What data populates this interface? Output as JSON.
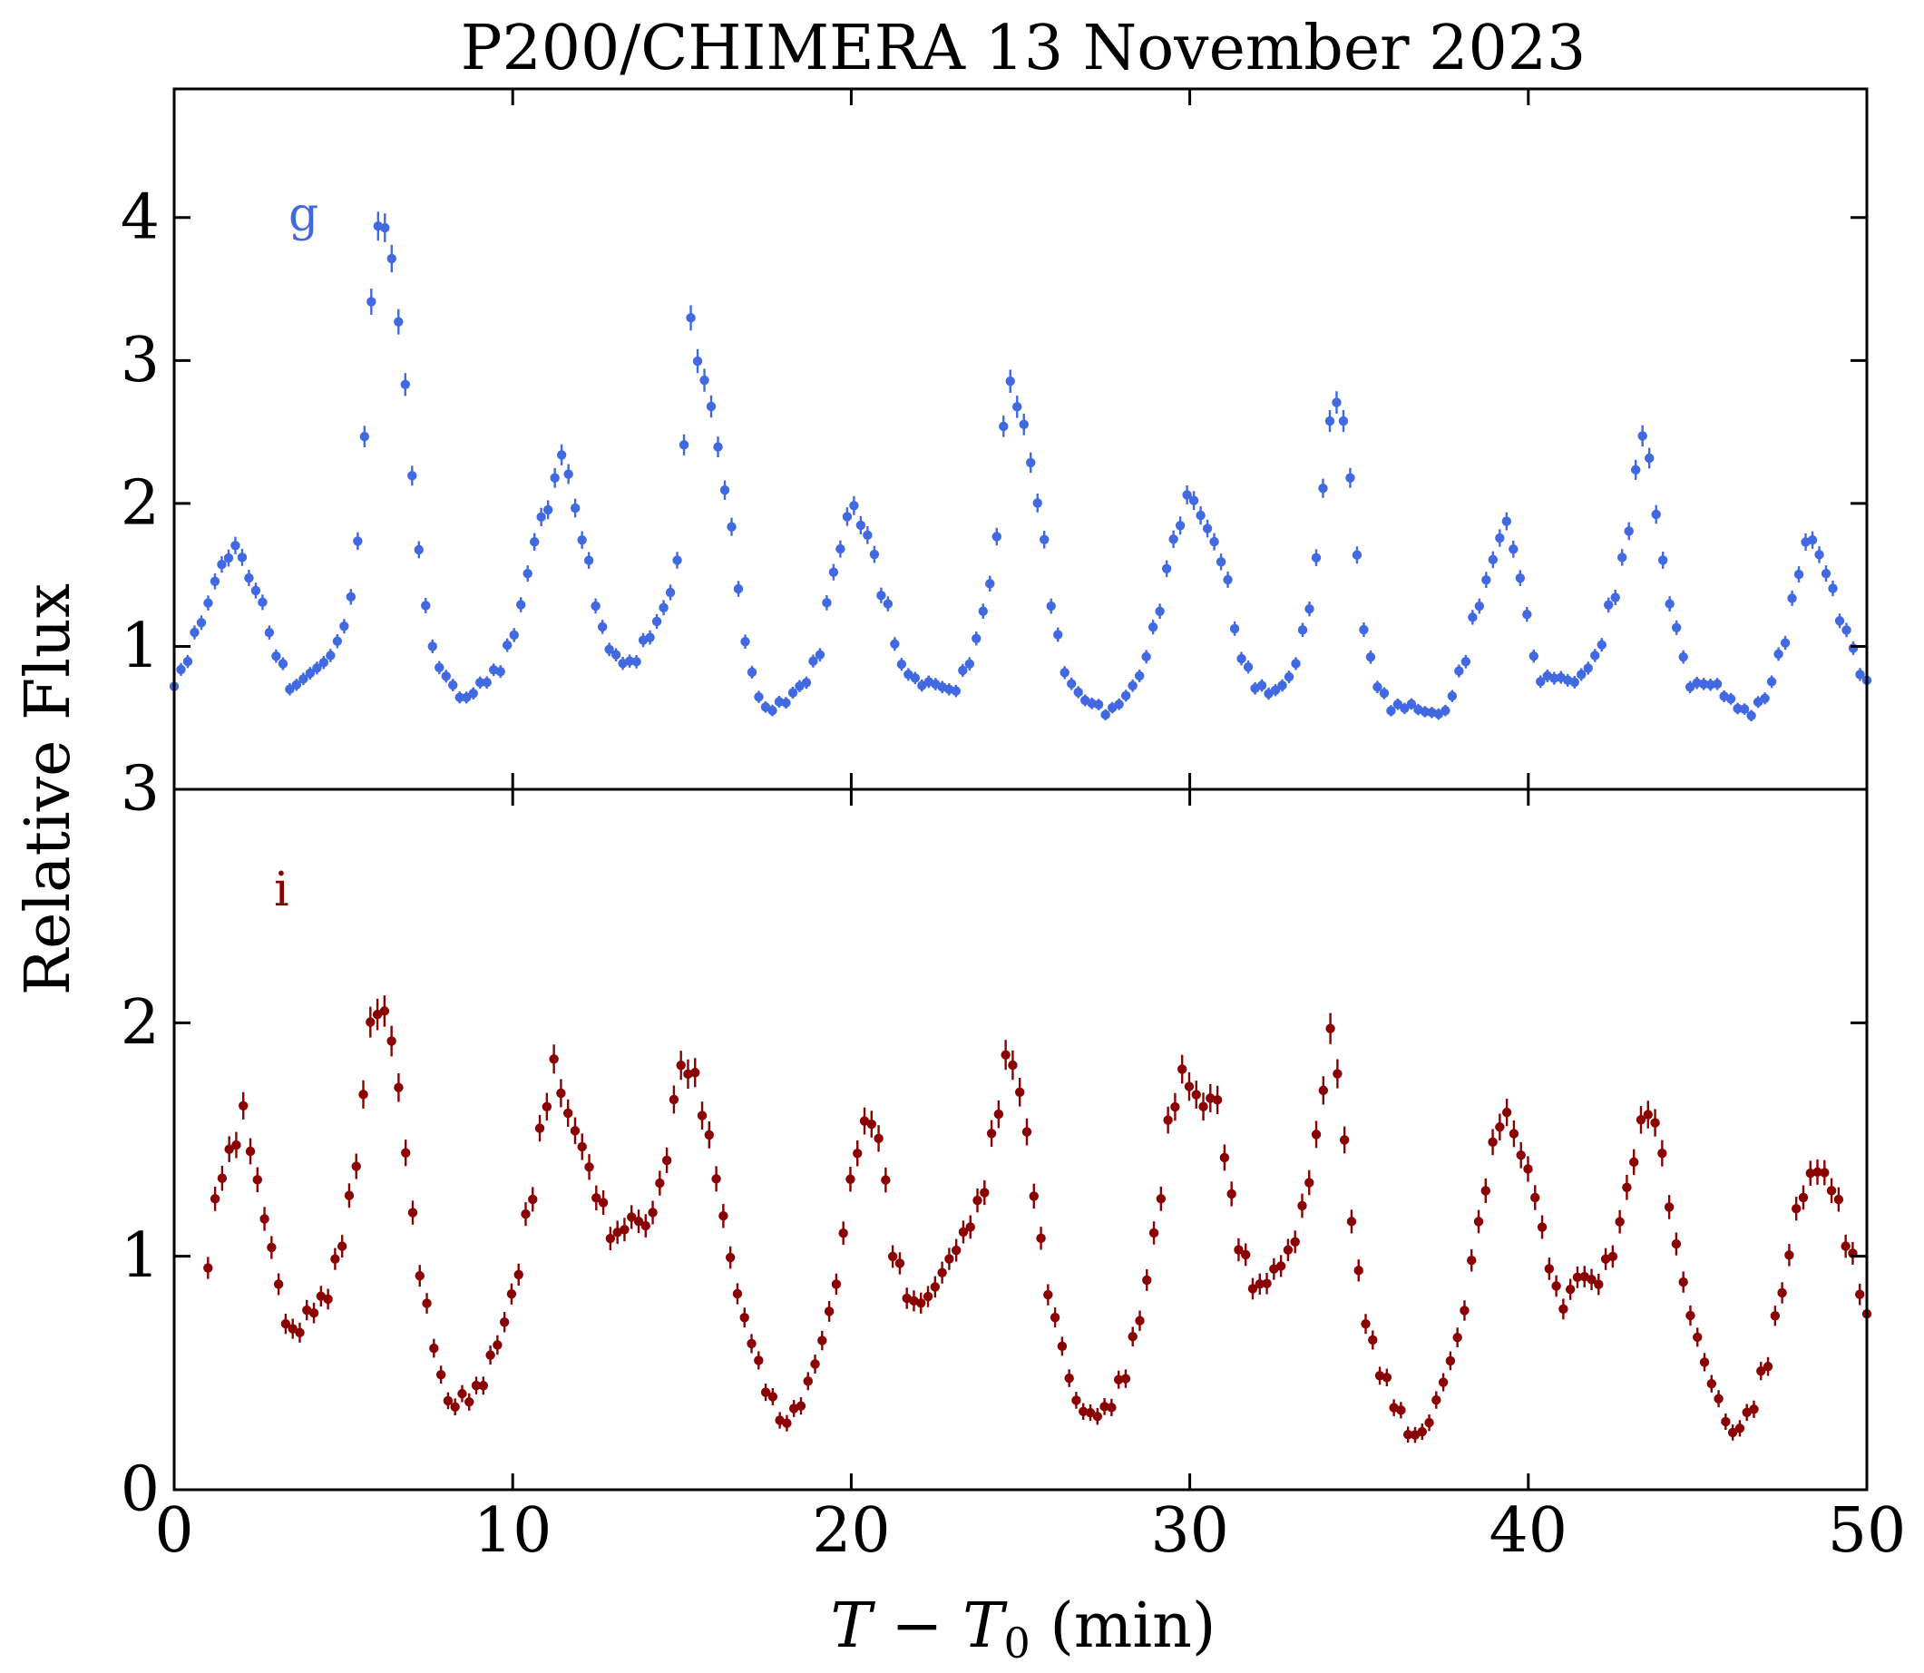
{
  "figure": {
    "title": "P200/CHIMERA 13 November 2023",
    "ylabel": "Relative Flux",
    "xlabel_main": "T − T",
    "xlabel_sub": "0",
    "xlabel_unit": " (min)"
  },
  "chart_data": [
    {
      "type": "scatter",
      "name": "g-band",
      "label": "g",
      "color": "#4169e1",
      "xlim": [
        0,
        50
      ],
      "ylim": [
        0.0,
        4.9
      ],
      "yticks": [
        1,
        2,
        3,
        4
      ],
      "ytick_labels": [
        "1",
        "2",
        "3",
        "4"
      ],
      "xticks": [
        0,
        10,
        20,
        30,
        40,
        50
      ],
      "anchors": [
        [
          0.0,
          0.72
        ],
        [
          0.3,
          0.85
        ],
        [
          0.8,
          1.15
        ],
        [
          1.4,
          1.55
        ],
        [
          1.8,
          1.72
        ],
        [
          2.5,
          1.4
        ],
        [
          3.0,
          0.95
        ],
        [
          3.5,
          0.67
        ],
        [
          4.0,
          0.78
        ],
        [
          4.5,
          0.9
        ],
        [
          5.0,
          1.15
        ],
        [
          5.3,
          1.45
        ],
        [
          5.5,
          1.9
        ],
        [
          5.7,
          2.8
        ],
        [
          5.9,
          3.7
        ],
        [
          6.1,
          4.05
        ],
        [
          6.3,
          3.85
        ],
        [
          6.5,
          3.6
        ],
        [
          6.7,
          3.1
        ],
        [
          6.9,
          2.65
        ],
        [
          7.1,
          2.0
        ],
        [
          7.3,
          1.5
        ],
        [
          7.6,
          1.0
        ],
        [
          8.0,
          0.82
        ],
        [
          8.6,
          0.65
        ],
        [
          9.0,
          0.72
        ],
        [
          9.6,
          0.8
        ],
        [
          10.0,
          1.05
        ],
        [
          10.3,
          1.3
        ],
        [
          10.6,
          1.75
        ],
        [
          11.0,
          2.0
        ],
        [
          11.5,
          2.4
        ],
        [
          11.8,
          2.0
        ],
        [
          12.2,
          1.6
        ],
        [
          12.6,
          1.1
        ],
        [
          13.0,
          0.9
        ],
        [
          13.5,
          0.88
        ],
        [
          14.0,
          1.1
        ],
        [
          14.5,
          1.3
        ],
        [
          14.9,
          1.6
        ],
        [
          15.1,
          2.5
        ],
        [
          15.3,
          3.33
        ],
        [
          15.5,
          2.95
        ],
        [
          15.8,
          2.7
        ],
        [
          16.1,
          2.35
        ],
        [
          16.4,
          1.9
        ],
        [
          16.7,
          1.4
        ],
        [
          17.0,
          0.85
        ],
        [
          17.5,
          0.58
        ],
        [
          18.0,
          0.6
        ],
        [
          18.6,
          0.7
        ],
        [
          19.0,
          0.9
        ],
        [
          19.5,
          1.55
        ],
        [
          20.0,
          2.02
        ],
        [
          20.5,
          1.8
        ],
        [
          21.0,
          1.3
        ],
        [
          21.5,
          0.82
        ],
        [
          22.0,
          0.72
        ],
        [
          22.5,
          0.75
        ],
        [
          23.0,
          0.72
        ],
        [
          23.5,
          0.92
        ],
        [
          24.0,
          1.3
        ],
        [
          24.3,
          1.75
        ],
        [
          24.5,
          2.5
        ],
        [
          24.7,
          2.82
        ],
        [
          25.0,
          2.6
        ],
        [
          25.3,
          2.3
        ],
        [
          25.6,
          1.9
        ],
        [
          26.0,
          1.2
        ],
        [
          26.4,
          0.78
        ],
        [
          27.0,
          0.6
        ],
        [
          27.6,
          0.5
        ],
        [
          28.0,
          0.6
        ],
        [
          28.5,
          0.8
        ],
        [
          29.0,
          1.2
        ],
        [
          29.5,
          1.75
        ],
        [
          30.0,
          2.05
        ],
        [
          30.5,
          1.8
        ],
        [
          31.0,
          1.55
        ],
        [
          31.5,
          0.95
        ],
        [
          32.0,
          0.75
        ],
        [
          32.5,
          0.7
        ],
        [
          33.0,
          0.78
        ],
        [
          33.5,
          1.2
        ],
        [
          34.0,
          2.1
        ],
        [
          34.2,
          2.73
        ],
        [
          34.6,
          2.6
        ],
        [
          34.9,
          1.7
        ],
        [
          35.2,
          1.1
        ],
        [
          35.5,
          0.75
        ],
        [
          36.0,
          0.55
        ],
        [
          36.5,
          0.55
        ],
        [
          37.0,
          0.52
        ],
        [
          37.5,
          0.55
        ],
        [
          38.0,
          0.85
        ],
        [
          38.5,
          1.3
        ],
        [
          39.0,
          1.6
        ],
        [
          39.3,
          1.85
        ],
        [
          39.6,
          1.65
        ],
        [
          39.9,
          1.25
        ],
        [
          40.3,
          0.78
        ],
        [
          40.8,
          0.82
        ],
        [
          41.4,
          0.78
        ],
        [
          42.0,
          0.9
        ],
        [
          42.5,
          1.3
        ],
        [
          43.0,
          1.8
        ],
        [
          43.3,
          2.5
        ],
        [
          43.6,
          2.35
        ],
        [
          43.9,
          1.7
        ],
        [
          44.3,
          1.2
        ],
        [
          44.8,
          0.72
        ],
        [
          45.5,
          0.7
        ],
        [
          46.0,
          0.6
        ],
        [
          46.5,
          0.55
        ],
        [
          47.0,
          0.68
        ],
        [
          47.5,
          1.0
        ],
        [
          48.0,
          1.5
        ],
        [
          48.3,
          1.75
        ],
        [
          48.8,
          1.5
        ],
        [
          49.3,
          1.15
        ],
        [
          50.0,
          0.78
        ]
      ]
    },
    {
      "type": "scatter",
      "name": "i-band",
      "label": "i",
      "color": "#8b0000",
      "xlim": [
        0,
        50
      ],
      "ylim": [
        0.0,
        3.0
      ],
      "yticks": [
        0,
        1,
        2,
        3
      ],
      "ytick_labels": [
        "0",
        "1",
        "2",
        "3"
      ],
      "xticks": [
        0,
        10,
        20,
        30,
        40,
        50
      ],
      "xtick_labels": [
        "0",
        "10",
        "20",
        "30",
        "40",
        "50"
      ],
      "anchors": [
        [
          1.0,
          0.95
        ],
        [
          1.3,
          1.3
        ],
        [
          1.8,
          1.45
        ],
        [
          2.0,
          1.6
        ],
        [
          2.5,
          1.3
        ],
        [
          2.8,
          1.1
        ],
        [
          3.0,
          0.95
        ],
        [
          3.3,
          0.75
        ],
        [
          3.6,
          0.7
        ],
        [
          4.0,
          0.77
        ],
        [
          4.5,
          0.8
        ],
        [
          4.9,
          1.0
        ],
        [
          5.3,
          1.3
        ],
        [
          5.6,
          1.7
        ],
        [
          5.8,
          2.0
        ],
        [
          6.1,
          2.1
        ],
        [
          6.4,
          1.98
        ],
        [
          6.7,
          1.7
        ],
        [
          7.0,
          1.2
        ],
        [
          7.4,
          0.8
        ],
        [
          7.8,
          0.5
        ],
        [
          8.1,
          0.33
        ],
        [
          8.6,
          0.38
        ],
        [
          9.0,
          0.45
        ],
        [
          9.5,
          0.65
        ],
        [
          10.0,
          0.85
        ],
        [
          10.5,
          1.2
        ],
        [
          10.9,
          1.55
        ],
        [
          11.2,
          1.8
        ],
        [
          11.6,
          1.6
        ],
        [
          12.0,
          1.5
        ],
        [
          12.5,
          1.3
        ],
        [
          13.0,
          1.1
        ],
        [
          13.5,
          1.15
        ],
        [
          14.0,
          1.1
        ],
        [
          14.5,
          1.35
        ],
        [
          14.9,
          1.8
        ],
        [
          15.3,
          1.82
        ],
        [
          15.8,
          1.55
        ],
        [
          16.2,
          1.2
        ],
        [
          16.6,
          0.85
        ],
        [
          17.0,
          0.62
        ],
        [
          17.5,
          0.4
        ],
        [
          18.0,
          0.28
        ],
        [
          18.5,
          0.4
        ],
        [
          19.0,
          0.6
        ],
        [
          19.5,
          0.85
        ],
        [
          20.0,
          1.3
        ],
        [
          20.4,
          1.55
        ],
        [
          20.8,
          1.5
        ],
        [
          21.3,
          1.0
        ],
        [
          21.8,
          0.83
        ],
        [
          22.3,
          0.85
        ],
        [
          22.8,
          0.95
        ],
        [
          23.3,
          1.05
        ],
        [
          23.8,
          1.2
        ],
        [
          24.3,
          1.6
        ],
        [
          24.6,
          1.9
        ],
        [
          25.0,
          1.75
        ],
        [
          25.4,
          1.3
        ],
        [
          25.8,
          0.85
        ],
        [
          26.2,
          0.6
        ],
        [
          26.6,
          0.35
        ],
        [
          27.0,
          0.3
        ],
        [
          27.5,
          0.35
        ],
        [
          28.0,
          0.5
        ],
        [
          28.5,
          0.75
        ],
        [
          29.0,
          1.1
        ],
        [
          29.4,
          1.55
        ],
        [
          29.8,
          1.75
        ],
        [
          30.3,
          1.65
        ],
        [
          30.8,
          1.7
        ],
        [
          31.2,
          1.3
        ],
        [
          31.5,
          1.05
        ],
        [
          32.0,
          0.85
        ],
        [
          32.5,
          0.9
        ],
        [
          33.0,
          1.0
        ],
        [
          33.5,
          1.3
        ],
        [
          33.9,
          1.7
        ],
        [
          34.2,
          2.05
        ],
        [
          34.5,
          1.6
        ],
        [
          34.8,
          1.15
        ],
        [
          35.2,
          0.7
        ],
        [
          35.7,
          0.45
        ],
        [
          36.2,
          0.3
        ],
        [
          36.6,
          0.22
        ],
        [
          37.0,
          0.3
        ],
        [
          37.5,
          0.5
        ],
        [
          38.0,
          0.7
        ],
        [
          38.5,
          1.1
        ],
        [
          39.0,
          1.45
        ],
        [
          39.3,
          1.6
        ],
        [
          39.8,
          1.45
        ],
        [
          40.2,
          1.3
        ],
        [
          40.6,
          1.0
        ],
        [
          41.0,
          0.8
        ],
        [
          41.5,
          0.9
        ],
        [
          42.0,
          0.85
        ],
        [
          42.5,
          1.0
        ],
        [
          43.0,
          1.35
        ],
        [
          43.4,
          1.65
        ],
        [
          43.8,
          1.6
        ],
        [
          44.2,
          1.2
        ],
        [
          44.6,
          0.85
        ],
        [
          45.0,
          0.6
        ],
        [
          45.5,
          0.4
        ],
        [
          46.0,
          0.25
        ],
        [
          46.5,
          0.35
        ],
        [
          47.0,
          0.55
        ],
        [
          47.5,
          0.85
        ],
        [
          48.0,
          1.2
        ],
        [
          48.5,
          1.35
        ],
        [
          49.0,
          1.3
        ],
        [
          49.5,
          1.05
        ],
        [
          50.0,
          0.78
        ]
      ]
    }
  ]
}
